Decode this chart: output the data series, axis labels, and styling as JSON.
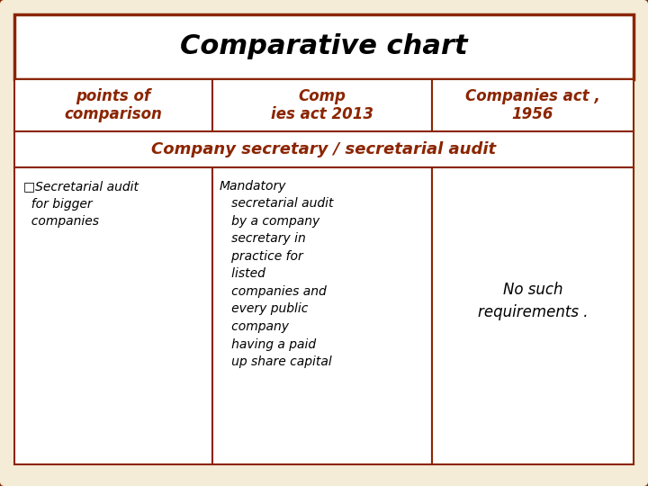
{
  "title": "Comparative chart",
  "title_fontsize": 22,
  "title_color": "#000000",
  "title_style": "italic",
  "title_weight": "bold",
  "header_color": "#8B2500",
  "border_color": "#8B2500",
  "col1_header": "points of\ncomparison",
  "col2_header": "Comp\nies act 2013",
  "col3_header": "Companies act ,\n1956",
  "section_label": "Company secretary / secretarial audit",
  "col1_content": "□Secretarial audit\n  for bigger\n  companies",
  "col2_content": "Mandatory\n   secretarial audit\n   by a company\n   secretary in\n   practice for\n   listed\n   companies and\n   every public\n   company\n   having a paid\n   up share capital",
  "col3_content": "No such\nrequirements .",
  "bg_color": "#F5ECD7",
  "cell_bg": "#FFFFFF",
  "outer_border_lw": 2.5,
  "inner_border_lw": 1.5,
  "content_fontsize": 10,
  "header_fontsize": 12,
  "section_fontsize": 13,
  "fig_w": 7.2,
  "fig_h": 5.4,
  "dpi": 100
}
